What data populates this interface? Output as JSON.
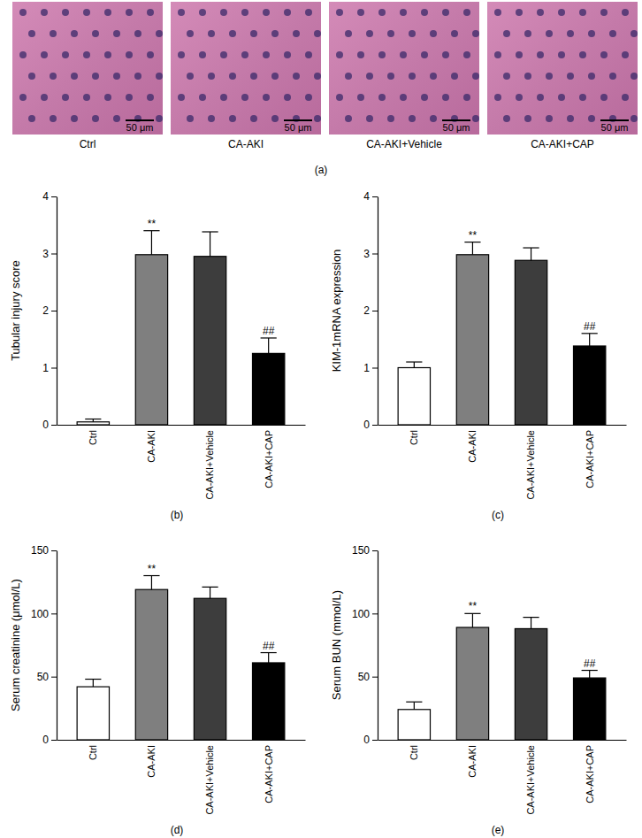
{
  "panel_a": {
    "label": "(a)",
    "images": [
      {
        "caption": "Ctrl",
        "scale_bar": "50 μm"
      },
      {
        "caption": "CA-AKI",
        "scale_bar": "50 μm"
      },
      {
        "caption": "CA-AKI+Vehicle",
        "scale_bar": "50 μm"
      },
      {
        "caption": "CA-AKI+CAP",
        "scale_bar": "50 μm"
      }
    ]
  },
  "chart_data": [
    {
      "type": "bar",
      "panel": "(b)",
      "y_label": "Tubular injury score",
      "categories": [
        "Ctrl",
        "CA-AKI",
        "CA-AKI+Vehicle",
        "CA-AKI+CAP"
      ],
      "values": [
        0.05,
        2.98,
        2.95,
        1.25
      ],
      "errors": [
        0.05,
        0.42,
        0.43,
        0.27
      ],
      "colors": [
        "#ffffff",
        "#7f7f7f",
        "#3d3d3d",
        "#000000"
      ],
      "ylim": [
        0,
        4
      ],
      "yticks": [
        0,
        1,
        2,
        3,
        4
      ],
      "annotations": [
        {
          "category": "CA-AKI",
          "text": "**"
        },
        {
          "category": "CA-AKI+CAP",
          "text": "##"
        }
      ]
    },
    {
      "type": "bar",
      "panel": "(c)",
      "y_label": "KIM-1mRNA expression",
      "categories": [
        "Ctrl",
        "CA-AKI",
        "CA-AKI+Vehicle",
        "CA-AKI+CAP"
      ],
      "values": [
        1.0,
        2.98,
        2.88,
        1.38
      ],
      "errors": [
        0.1,
        0.22,
        0.22,
        0.22
      ],
      "colors": [
        "#ffffff",
        "#7f7f7f",
        "#3d3d3d",
        "#000000"
      ],
      "ylim": [
        0,
        4
      ],
      "yticks": [
        0,
        1,
        2,
        3,
        4
      ],
      "annotations": [
        {
          "category": "CA-AKI",
          "text": "**"
        },
        {
          "category": "CA-AKI+CAP",
          "text": "##"
        }
      ]
    },
    {
      "type": "bar",
      "panel": "(d)",
      "y_label": "Serum creatinine (μmol/L)",
      "categories": [
        "Ctrl",
        "CA-AKI",
        "CA-AKI+Vehicle",
        "CA-AKI+CAP"
      ],
      "values": [
        42,
        119,
        112,
        61
      ],
      "errors": [
        6,
        11,
        9,
        8
      ],
      "colors": [
        "#ffffff",
        "#7f7f7f",
        "#3d3d3d",
        "#000000"
      ],
      "ylim": [
        0,
        150
      ],
      "yticks": [
        0,
        50,
        100,
        150
      ],
      "annotations": [
        {
          "category": "CA-AKI",
          "text": "**"
        },
        {
          "category": "CA-AKI+CAP",
          "text": "##"
        }
      ]
    },
    {
      "type": "bar",
      "panel": "(e)",
      "y_label": "Serum BUN (mmol/L)",
      "categories": [
        "Ctrl",
        "CA-AKI",
        "CA-AKI+Vehicle",
        "CA-AKI+CAP"
      ],
      "values": [
        24,
        89,
        88,
        49
      ],
      "errors": [
        6,
        11,
        9,
        6
      ],
      "colors": [
        "#ffffff",
        "#7f7f7f",
        "#3d3d3d",
        "#000000"
      ],
      "ylim": [
        0,
        150
      ],
      "yticks": [
        0,
        50,
        100,
        150
      ],
      "annotations": [
        {
          "category": "CA-AKI",
          "text": "**"
        },
        {
          "category": "CA-AKI+CAP",
          "text": "##"
        }
      ]
    }
  ]
}
